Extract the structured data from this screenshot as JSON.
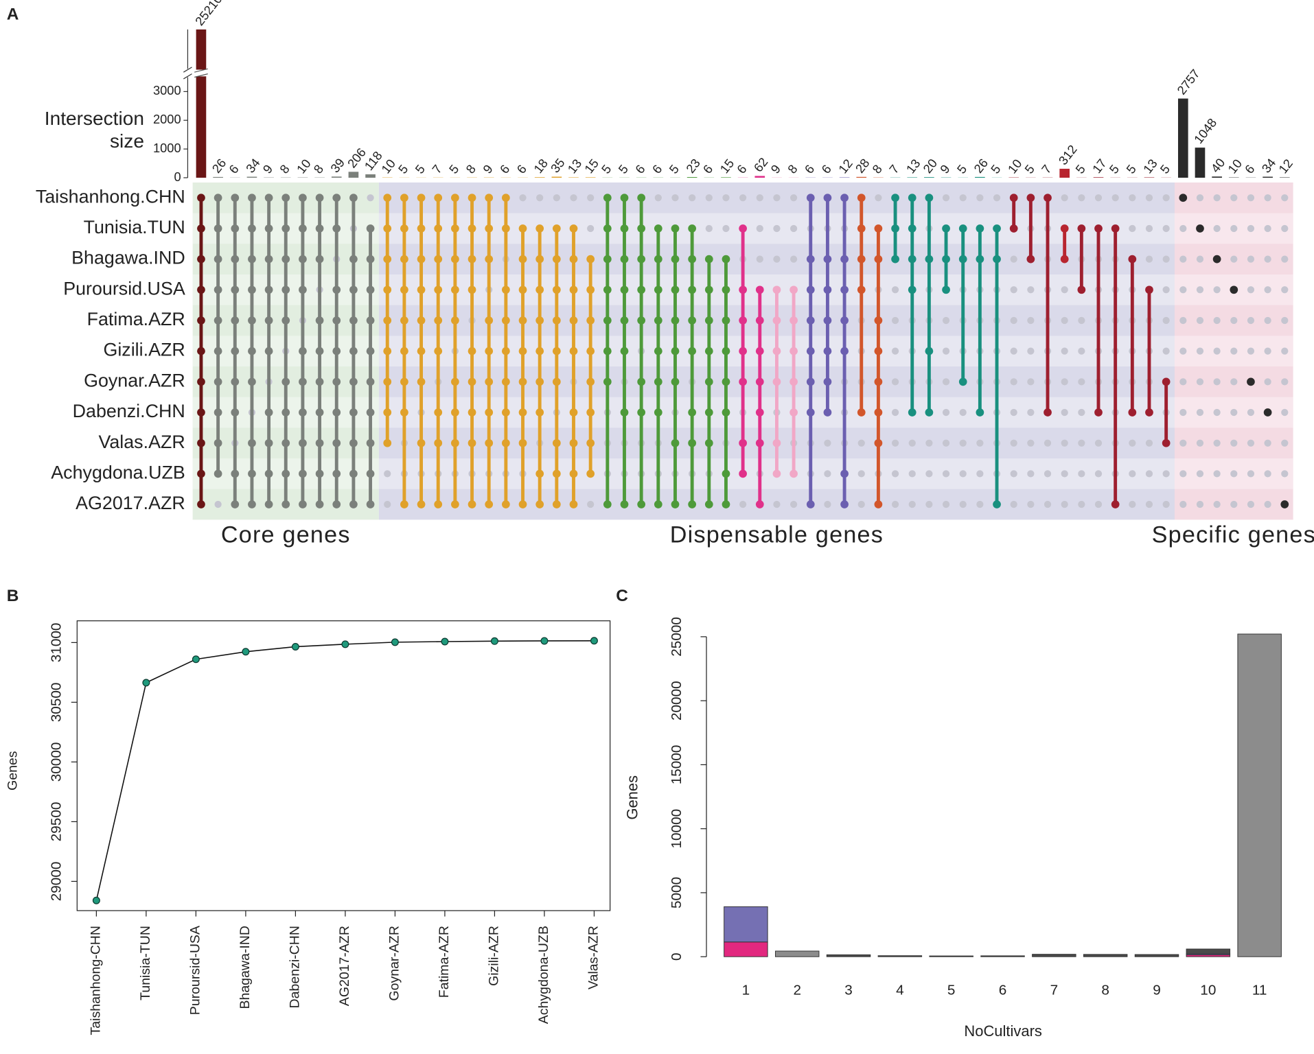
{
  "chart_data": [
    {
      "type": "upset",
      "panel": "A",
      "y_label": "Intersection size",
      "sets": [
        "Taishanhong.CHN",
        "Tunisia.TUN",
        "Bhagawa.IND",
        "Puroursid.USA",
        "Fatima.AZR",
        "Gizili.AZR",
        "Goynar.AZR",
        "Dabenzi.CHN",
        "Valas.AZR",
        "Achygdona.UZB",
        "AG2017.AZR"
      ],
      "ylim": [
        0,
        25210
      ],
      "axis_break": 3500,
      "yticks": [
        0,
        1000,
        2000,
        3000
      ],
      "groups": [
        {
          "label": "Core genes",
          "background": "#e2eee0",
          "values": [
            25210,
            26,
            6,
            34,
            9,
            8,
            10,
            8,
            39,
            206,
            118
          ],
          "colors": [
            "#6a1616",
            "#7b807b",
            "#7b807b",
            "#7b807b",
            "#7b807b",
            "#7b807b",
            "#7b807b",
            "#7b807b",
            "#7b807b",
            "#7b807b",
            "#7b807b"
          ],
          "members": [
            [
              0,
              1,
              2,
              3,
              4,
              5,
              6,
              7,
              8,
              9,
              10
            ],
            [
              0,
              1,
              2,
              3,
              4,
              5,
              6,
              7,
              8,
              9
            ],
            [
              0,
              1,
              2,
              3,
              4,
              5,
              6,
              7,
              9,
              10
            ],
            [
              0,
              1,
              2,
              3,
              4,
              5,
              6,
              8,
              9,
              10
            ],
            [
              0,
              1,
              2,
              3,
              4,
              5,
              7,
              8,
              9,
              10
            ],
            [
              0,
              1,
              2,
              3,
              4,
              6,
              7,
              8,
              9,
              10
            ],
            [
              0,
              1,
              2,
              3,
              5,
              6,
              7,
              8,
              9,
              10
            ],
            [
              0,
              1,
              2,
              4,
              5,
              6,
              7,
              8,
              9,
              10
            ],
            [
              0,
              1,
              3,
              4,
              5,
              6,
              7,
              8,
              9,
              10
            ],
            [
              0,
              2,
              3,
              4,
              5,
              6,
              7,
              8,
              9,
              10
            ],
            [
              1,
              2,
              3,
              4,
              5,
              6,
              7,
              8,
              9,
              10
            ]
          ]
        },
        {
          "label": "Dispensable genes",
          "background": "#dadaea",
          "values": [
            10,
            5,
            5,
            7,
            5,
            8,
            9,
            6,
            6,
            18,
            35,
            13,
            15,
            5,
            5,
            6,
            6,
            5,
            23,
            6,
            15,
            6,
            62,
            9,
            8,
            6,
            6,
            12,
            28,
            8,
            7,
            13,
            20,
            9,
            5,
            26,
            5,
            10,
            5,
            7,
            312,
            5,
            17,
            5,
            5,
            13,
            5
          ],
          "colors": [
            "#e0a12a",
            "#e0a12a",
            "#e0a12a",
            "#e0a12a",
            "#e0a12a",
            "#e0a12a",
            "#e0a12a",
            "#e0a12a",
            "#e0a12a",
            "#e0a12a",
            "#e0a12a",
            "#e0a12a",
            "#e0a12a",
            "#4e9a3a",
            "#4e9a3a",
            "#4e9a3a",
            "#4e9a3a",
            "#4e9a3a",
            "#4e9a3a",
            "#4e9a3a",
            "#4e9a3a",
            "#e0318a",
            "#e0318a",
            "#f1a7c6",
            "#f1a7c6",
            "#6b5fb0",
            "#6b5fb0",
            "#6b5fb0",
            "#d2562b",
            "#d2562b",
            "#19907f",
            "#19907f",
            "#19907f",
            "#19907f",
            "#19907f",
            "#19907f",
            "#19907f",
            "#9e1f2f",
            "#9e1f2f",
            "#9e1f2f",
            "#b8252f",
            "#9e1f2f",
            "#9e1f2f",
            "#9e1f2f",
            "#9e1f2f",
            "#9e1f2f",
            "#9e1f2f"
          ],
          "members": [
            [
              0,
              1,
              2,
              3,
              4,
              5,
              6,
              7,
              8
            ],
            [
              0,
              1,
              2,
              3,
              4,
              5,
              6,
              7,
              10
            ],
            [
              0,
              1,
              2,
              3,
              4,
              5,
              6,
              8,
              10
            ],
            [
              0,
              1,
              2,
              3,
              4,
              5,
              7,
              8,
              10
            ],
            [
              0,
              1,
              2,
              3,
              4,
              6,
              7,
              8,
              10
            ],
            [
              0,
              1,
              2,
              3,
              5,
              6,
              7,
              8,
              10
            ],
            [
              0,
              1,
              2,
              4,
              5,
              6,
              7,
              8,
              10
            ],
            [
              0,
              1,
              3,
              4,
              5,
              6,
              7,
              8,
              10
            ],
            [
              1,
              2,
              3,
              4,
              5,
              6,
              7,
              8,
              10
            ],
            [
              1,
              2,
              3,
              4,
              5,
              6,
              7,
              9,
              10
            ],
            [
              1,
              2,
              3,
              4,
              5,
              6,
              8,
              9,
              10
            ],
            [
              1,
              2,
              3,
              4,
              5,
              7,
              8,
              9,
              10
            ],
            [
              2,
              3,
              4,
              5,
              6,
              7,
              8,
              9
            ],
            [
              0,
              1,
              2,
              3,
              4,
              5,
              6,
              10
            ],
            [
              0,
              1,
              2,
              3,
              4,
              5,
              7,
              10
            ],
            [
              0,
              1,
              2,
              3,
              4,
              6,
              7,
              10
            ],
            [
              1,
              2,
              3,
              4,
              5,
              6,
              7,
              10
            ],
            [
              1,
              2,
              3,
              4,
              5,
              6,
              8,
              10
            ],
            [
              1,
              2,
              3,
              4,
              5,
              7,
              8,
              10
            ],
            [
              2,
              3,
              4,
              5,
              6,
              7,
              8,
              10
            ],
            [
              2,
              3,
              4,
              5,
              6,
              7,
              9,
              10
            ],
            [
              1,
              3,
              4,
              5,
              6,
              8,
              9
            ],
            [
              3,
              4,
              5,
              6,
              7,
              8,
              10
            ],
            [
              3,
              4,
              5,
              6,
              8,
              9
            ],
            [
              3,
              4,
              5,
              6,
              7,
              9
            ],
            [
              0,
              2,
              3,
              4,
              5,
              6,
              7,
              10
            ],
            [
              0,
              2,
              3,
              4,
              5,
              6,
              7
            ],
            [
              0,
              2,
              3,
              4,
              5,
              9,
              10
            ],
            [
              0,
              1,
              2,
              3,
              7
            ],
            [
              1,
              2,
              4,
              5,
              6,
              7,
              8,
              10
            ],
            [
              0,
              1,
              2
            ],
            [
              0,
              1,
              2,
              3,
              7
            ],
            [
              0,
              2,
              5,
              7
            ],
            [
              1,
              2,
              3
            ],
            [
              1,
              2,
              6
            ],
            [
              1,
              2,
              7
            ],
            [
              1,
              2,
              10
            ],
            [
              0,
              1
            ],
            [
              0,
              2
            ],
            [
              0,
              7
            ],
            [
              1,
              2
            ],
            [
              1,
              3
            ],
            [
              1,
              7
            ],
            [
              1,
              10
            ],
            [
              2,
              7
            ],
            [
              3,
              7
            ],
            [
              6,
              8
            ]
          ]
        },
        {
          "label": "Specific genes",
          "background": "#f4dbe3",
          "values": [
            2757,
            1048,
            40,
            10,
            6,
            34,
            12
          ],
          "colors": [
            "#2b2b2b",
            "#2b2b2b",
            "#2b2b2b",
            "#2b2b2b",
            "#2b2b2b",
            "#2b2b2b",
            "#2b2b2b"
          ],
          "members": [
            [
              0
            ],
            [
              1
            ],
            [
              2
            ],
            [
              3
            ],
            [
              6
            ],
            [
              7
            ],
            [
              10
            ]
          ]
        }
      ]
    },
    {
      "type": "line",
      "panel": "B",
      "y_label": "Genes",
      "categories": [
        "Taishanhong-CHN",
        "Tunisia-TUN",
        "Puroursid-USA",
        "Bhagawa-IND",
        "Dabenzi-CHN",
        "AG2017-AZR",
        "Goynar-AZR",
        "Fatima-AZR",
        "Gizili-AZR",
        "Achygdona-UZB",
        "Valas-AZR"
      ],
      "values": [
        28840,
        30664,
        30860,
        30923,
        30965,
        30986,
        31003,
        31008,
        31012,
        31014,
        31015
      ],
      "color": "#1f9a7c",
      "ylim": [
        28755,
        31182
      ],
      "yticks": [
        29000,
        29500,
        30000,
        30500,
        31000
      ]
    },
    {
      "type": "bar",
      "panel": "C",
      "x_label": "NoCultivars",
      "y_label": "Genes",
      "categories": [
        1,
        2,
        3,
        4,
        5,
        6,
        7,
        8,
        9,
        10,
        11
      ],
      "series": [
        {
          "color": "#e2287f",
          "values": [
            1150,
            0,
            0,
            0,
            0,
            0,
            0,
            0,
            0,
            150,
            0
          ]
        },
        {
          "color": "#7570b3",
          "values": [
            2757,
            0,
            0,
            0,
            0,
            0,
            0,
            0,
            0,
            80,
            0
          ]
        },
        {
          "color": "#4a4a4a",
          "values": [
            0,
            0,
            150,
            80,
            60,
            70,
            190,
            180,
            170,
            370,
            0
          ]
        },
        {
          "color": "#8c8c8c",
          "values": [
            0,
            440,
            0,
            0,
            0,
            0,
            0,
            0,
            0,
            0,
            25210
          ]
        }
      ],
      "ylim": [
        0,
        25000
      ],
      "yticks": [
        0,
        5000,
        10000,
        15000,
        20000,
        25000
      ]
    }
  ]
}
